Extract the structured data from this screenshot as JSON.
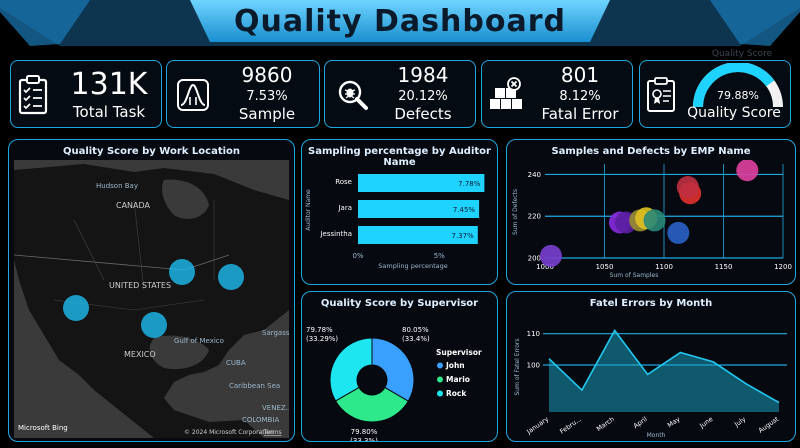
{
  "header": {
    "title": "Quality Dashboard"
  },
  "kpis": [
    {
      "value": "131K",
      "label": "Total Task",
      "icon": "clipboard-checklist-icon"
    },
    {
      "value": "9860",
      "pct": "7.53%",
      "label": "Sample",
      "icon": "bell-curve-icon"
    },
    {
      "value": "1984",
      "pct": "20.12%",
      "label": "Defects",
      "icon": "bug-search-icon"
    },
    {
      "value": "801",
      "pct": "8.12%",
      "label": "Fatal Error",
      "icon": "boxes-error-icon"
    },
    {
      "value": "79.88%",
      "label": "Quality Score",
      "faded": "Quality Score",
      "icon": "clipboard-badge-icon",
      "gauge_fraction": 0.7988
    }
  ],
  "map": {
    "title": "Quality Score by Work Location",
    "labels": {
      "hudson": "Hudson Bay",
      "canada": "CANADA",
      "us": "UNITED STATES",
      "mexico": "MEXICO",
      "gulf": "Gulf of\nMexico",
      "cuba": "CUBA",
      "caribbean": "Caribbean Sea",
      "colombia": "COLOMBIA",
      "venezuela": "VENEZ...",
      "sargasso": "Sargasso"
    },
    "attribution": "© 2024 Microsoft Corporation",
    "terms": "Terms",
    "brand": "Microsoft Bing"
  },
  "colors": {
    "accent": "#1fa8e0",
    "bar": "#1ed3ff",
    "john": "#3aa0ff",
    "mario": "#2ee88c",
    "rock": "#1ee6f0"
  },
  "charts": [
    {
      "title": "Sampling percentage by Auditor Name",
      "chart_data": {
        "type": "bar",
        "orientation": "horizontal",
        "categories": [
          "Rose",
          "Jara",
          "Jessintha"
        ],
        "values": [
          7.78,
          7.45,
          7.37
        ],
        "data_labels": [
          "7.78%",
          "7.45%",
          "7.37%"
        ],
        "xlabel": "Sampling percentage",
        "ylabel": "Auditor Name",
        "xlim": [
          0,
          8
        ],
        "xticks": [
          "0%",
          "5%"
        ]
      }
    },
    {
      "title": "Samples and Defects by EMP Name",
      "chart_data": {
        "type": "scatter",
        "xlabel": "Sum of Samples",
        "ylabel": "Sum of Defects",
        "xlim": [
          1000,
          1200
        ],
        "ylim": [
          200,
          245
        ],
        "xticks": [
          1000,
          1050,
          1100,
          1150,
          1200
        ],
        "yticks": [
          200,
          220,
          240
        ],
        "points": [
          {
            "x": 1005,
            "y": 201,
            "color": "#7a3fd0"
          },
          {
            "x": 1063,
            "y": 217,
            "color": "#8a2be2"
          },
          {
            "x": 1068,
            "y": 217,
            "color": "#5a1fa0"
          },
          {
            "x": 1080,
            "y": 218,
            "color": "#9a8f30"
          },
          {
            "x": 1085,
            "y": 219,
            "color": "#e0c020"
          },
          {
            "x": 1092,
            "y": 218,
            "color": "#2a8a78"
          },
          {
            "x": 1112,
            "y": 212,
            "color": "#2a60c8"
          },
          {
            "x": 1122,
            "y": 231,
            "color": "#e03030"
          },
          {
            "x": 1120,
            "y": 234,
            "color": "#c03040"
          },
          {
            "x": 1170,
            "y": 242,
            "color": "#e040a0"
          }
        ]
      }
    },
    {
      "title": "Quality Score by Supervisor",
      "legend_title": "Supervisor",
      "chart_data": {
        "type": "pie",
        "categories": [
          "John",
          "Mario",
          "Rock"
        ],
        "values": [
          33.4,
          33.3,
          33.29
        ],
        "slice_labels": [
          "80.05%\n(33.4%)",
          "79.80%\n(33.3%)",
          "79.78%\n(33.29%)"
        ],
        "legend_position": "right",
        "donut": true
      }
    },
    {
      "title": "Fatel Errors by Month",
      "chart_data": {
        "type": "area",
        "categories": [
          "January",
          "Febru...",
          "March",
          "April",
          "May",
          "June",
          "July",
          "August"
        ],
        "values": [
          102,
          92,
          111,
          97,
          104,
          101,
          94,
          88
        ],
        "xlabel": "Month",
        "ylabel": "Sum of Fatel Errors",
        "ylim": [
          85,
          115
        ],
        "yticks": [
          100,
          110
        ]
      }
    }
  ]
}
